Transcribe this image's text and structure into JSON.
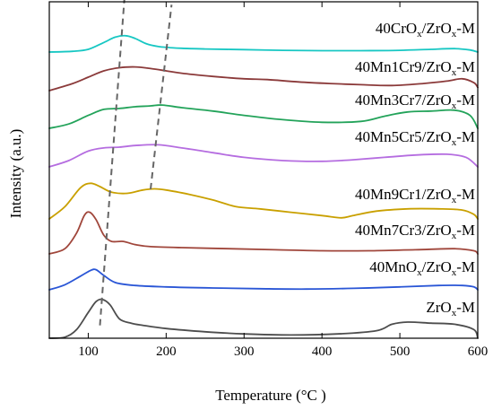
{
  "chart_data": {
    "type": "line",
    "xlabel": "Temperature (°C )",
    "ylabel": "Intensity (a.u.)",
    "xlim": [
      50,
      600
    ],
    "xticks": [
      100,
      200,
      300,
      400,
      500,
      600
    ],
    "yticks_shown": false,
    "grid": false,
    "series": [
      {
        "name_parts": [
          "40CrO",
          "x",
          "/ZrO",
          "x",
          "-M"
        ],
        "color": "#17c7c3",
        "x": [
          50,
          80,
          100,
          120,
          135,
          148,
          160,
          175,
          190,
          205,
          220,
          250,
          300,
          350,
          400,
          450,
          500,
          540,
          570,
          590,
          600
        ],
        "y": [
          0.0,
          0.02,
          0.08,
          0.28,
          0.44,
          0.48,
          0.4,
          0.24,
          0.16,
          0.13,
          0.11,
          0.09,
          0.07,
          0.05,
          0.04,
          0.04,
          0.05,
          0.08,
          0.1,
          0.06,
          0.0
        ]
      },
      {
        "name_parts": [
          "40Mn1Cr9/ZrO",
          "x",
          "-M"
        ],
        "color": "#8b3a3a",
        "x": [
          50,
          80,
          100,
          120,
          140,
          160,
          180,
          200,
          220,
          260,
          300,
          330,
          370,
          410,
          450,
          490,
          530,
          560,
          580,
          595,
          600
        ],
        "y": [
          0.0,
          0.18,
          0.34,
          0.5,
          0.58,
          0.6,
          0.56,
          0.5,
          0.44,
          0.36,
          0.3,
          0.28,
          0.22,
          0.18,
          0.15,
          0.13,
          0.18,
          0.24,
          0.3,
          0.2,
          0.08
        ]
      },
      {
        "name_parts": [
          "40Mn3Cr7/ZrO",
          "x",
          "-M"
        ],
        "color": "#23a35a",
        "x": [
          50,
          75,
          100,
          120,
          140,
          160,
          180,
          195,
          220,
          260,
          300,
          350,
          400,
          450,
          480,
          510,
          540,
          570,
          590,
          600
        ],
        "y": [
          0.0,
          0.1,
          0.3,
          0.44,
          0.46,
          0.5,
          0.52,
          0.54,
          0.48,
          0.4,
          0.3,
          0.2,
          0.14,
          0.16,
          0.28,
          0.38,
          0.4,
          0.42,
          0.3,
          0.0
        ]
      },
      {
        "name_parts": [
          "40Mn5Cr5/ZrO",
          "x",
          "-M"
        ],
        "color": "#b56de0",
        "x": [
          50,
          75,
          100,
          120,
          140,
          160,
          190,
          220,
          260,
          300,
          350,
          400,
          440,
          480,
          520,
          560,
          585,
          600
        ],
        "y": [
          0.0,
          0.16,
          0.4,
          0.48,
          0.5,
          0.54,
          0.56,
          0.48,
          0.36,
          0.24,
          0.16,
          0.14,
          0.18,
          0.24,
          0.3,
          0.32,
          0.24,
          0.0
        ]
      },
      {
        "name_parts": [
          "40Mn9Cr1/ZrO",
          "x",
          "-M"
        ],
        "color": "#c9a000",
        "x": [
          50,
          70,
          90,
          103,
          115,
          130,
          150,
          170,
          185,
          200,
          230,
          260,
          290,
          320,
          360,
          400,
          425,
          440,
          470,
          510,
          550,
          580,
          595,
          600
        ],
        "y": [
          0.0,
          0.22,
          0.56,
          0.64,
          0.58,
          0.48,
          0.46,
          0.52,
          0.54,
          0.52,
          0.44,
          0.34,
          0.22,
          0.18,
          0.12,
          0.06,
          0.02,
          0.06,
          0.14,
          0.18,
          0.18,
          0.16,
          0.08,
          0.0
        ]
      },
      {
        "name_parts": [
          "40Mn7Cr3/ZrO",
          "x",
          "-M"
        ],
        "color": "#a0463b",
        "x": [
          50,
          70,
          85,
          95,
          102,
          110,
          120,
          130,
          145,
          160,
          180,
          220,
          280,
          340,
          400,
          460,
          520,
          570,
          595,
          600
        ],
        "y": [
          0.0,
          0.1,
          0.4,
          0.74,
          0.8,
          0.66,
          0.36,
          0.24,
          0.24,
          0.18,
          0.14,
          0.12,
          0.1,
          0.08,
          0.06,
          0.06,
          0.08,
          0.1,
          0.06,
          0.0
        ]
      },
      {
        "name_parts": [
          "40MnO",
          "x",
          "/ZrO",
          "x",
          "-M"
        ],
        "color": "#2a56d6",
        "x": [
          50,
          70,
          90,
          103,
          110,
          120,
          135,
          160,
          200,
          260,
          320,
          380,
          440,
          500,
          550,
          580,
          595,
          600
        ],
        "y": [
          0.0,
          0.14,
          0.38,
          0.54,
          0.56,
          0.4,
          0.2,
          0.12,
          0.08,
          0.05,
          0.03,
          0.02,
          0.04,
          0.08,
          0.12,
          0.12,
          0.08,
          0.0
        ]
      },
      {
        "name_parts": [
          "ZrO",
          "x",
          "-M"
        ],
        "color": "#4d4d4d",
        "x": [
          50,
          70,
          85,
          100,
          110,
          118,
          128,
          140,
          155,
          170,
          200,
          250,
          300,
          360,
          420,
          470,
          490,
          510,
          540,
          570,
          595,
          600
        ],
        "y": [
          0.0,
          0.02,
          0.16,
          0.48,
          0.68,
          0.72,
          0.62,
          0.36,
          0.28,
          0.24,
          0.18,
          0.12,
          0.08,
          0.06,
          0.08,
          0.14,
          0.26,
          0.3,
          0.28,
          0.26,
          0.16,
          0.0
        ]
      }
    ],
    "guide_lines": [
      {
        "x": [
          115,
          147
        ],
        "from_series": 7,
        "to_series": 0
      },
      {
        "x": [
          180,
          207
        ],
        "from_series": 4,
        "to_series": 0
      }
    ]
  }
}
